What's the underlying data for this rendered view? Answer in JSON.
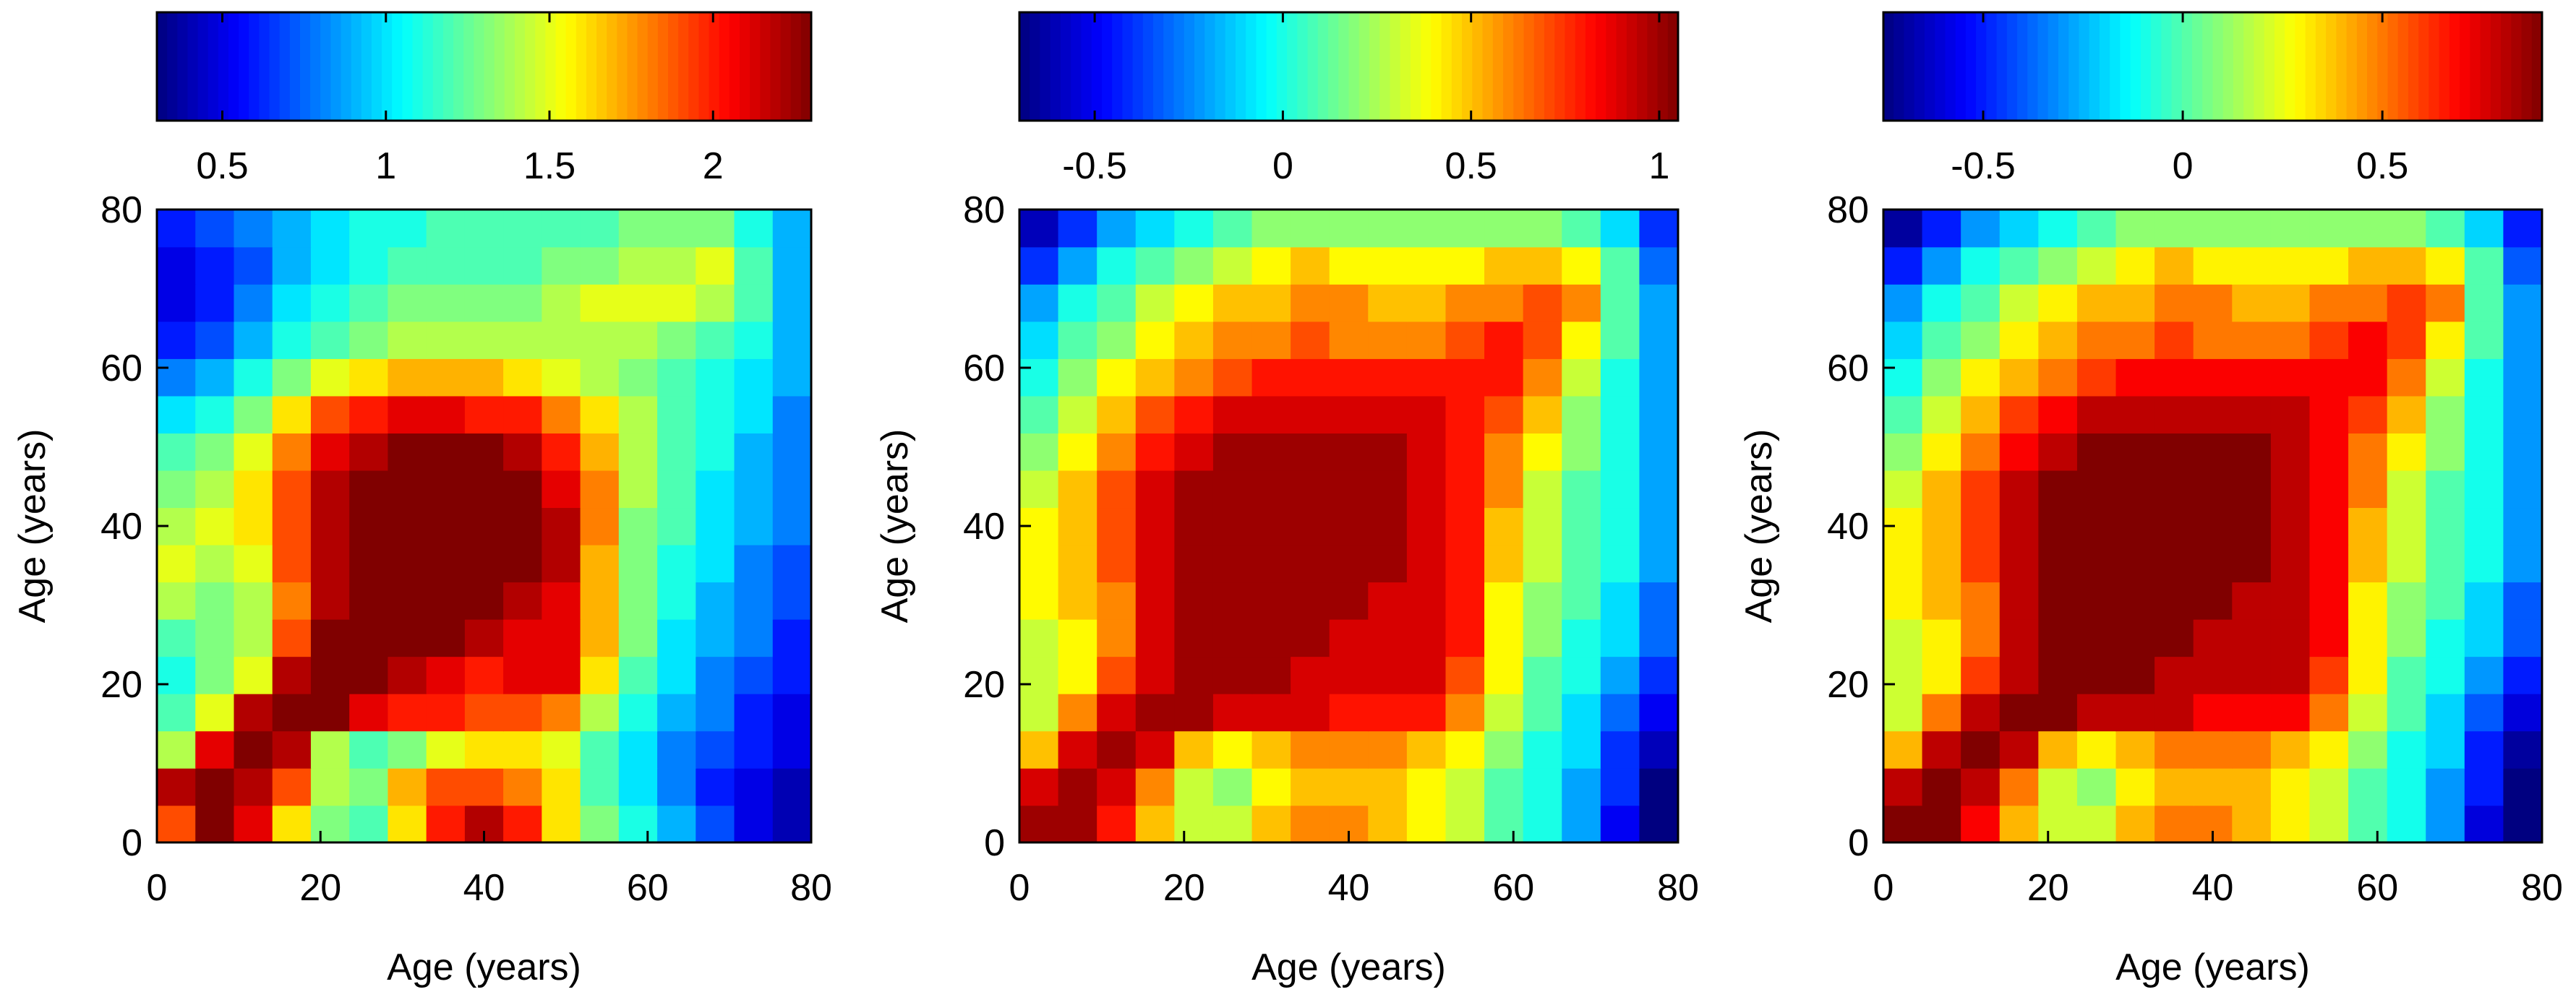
{
  "colormap": "jet",
  "chart_data": [
    {
      "type": "heatmap",
      "xlabel": "Age (years)",
      "ylabel": "Age (years)",
      "xlim": [
        0,
        80
      ],
      "ylim": [
        0,
        80
      ],
      "xticks": [
        "0",
        "20",
        "40",
        "60",
        "80"
      ],
      "yticks": [
        "0",
        "20",
        "40",
        "60",
        "80"
      ],
      "colorbar": {
        "location": "top",
        "range": [
          0.3,
          2.3
        ],
        "tick_values": [
          0.5,
          1,
          1.5,
          2
        ],
        "tick_labels": [
          "0.5",
          "1",
          "1.5",
          "2"
        ]
      },
      "grid_step": 5,
      "values": [
        [
          1.9,
          2.3,
          2.1,
          1.6,
          1.3,
          1.2,
          1.6,
          2.0,
          2.2,
          2.0,
          1.6,
          1.3,
          1.1,
          0.9,
          0.7,
          0.5,
          0.4
        ],
        [
          2.2,
          2.3,
          2.2,
          1.9,
          1.4,
          1.3,
          1.7,
          1.9,
          1.9,
          1.8,
          1.6,
          1.2,
          1.0,
          0.8,
          0.6,
          0.5,
          0.4
        ],
        [
          1.4,
          2.1,
          2.3,
          2.2,
          1.4,
          1.2,
          1.3,
          1.5,
          1.6,
          1.6,
          1.5,
          1.2,
          1.0,
          0.8,
          0.7,
          0.6,
          0.5
        ],
        [
          1.2,
          1.5,
          2.2,
          2.3,
          2.3,
          2.1,
          2.0,
          2.0,
          1.9,
          1.9,
          1.8,
          1.4,
          1.1,
          0.9,
          0.8,
          0.6,
          0.5
        ],
        [
          1.1,
          1.3,
          1.5,
          2.2,
          2.3,
          2.3,
          2.2,
          2.1,
          2.0,
          2.1,
          2.1,
          1.6,
          1.2,
          1.0,
          0.8,
          0.7,
          0.6
        ],
        [
          1.2,
          1.3,
          1.4,
          1.9,
          2.3,
          2.3,
          2.3,
          2.3,
          2.2,
          2.1,
          2.1,
          1.7,
          1.3,
          1.0,
          0.9,
          0.8,
          0.6
        ],
        [
          1.4,
          1.3,
          1.4,
          1.8,
          2.2,
          2.3,
          2.4,
          2.3,
          2.3,
          2.2,
          2.1,
          1.7,
          1.3,
          1.1,
          0.9,
          0.8,
          0.7
        ],
        [
          1.5,
          1.4,
          1.5,
          1.9,
          2.2,
          2.3,
          2.3,
          2.3,
          2.4,
          2.3,
          2.2,
          1.7,
          1.3,
          1.1,
          1.0,
          0.8,
          0.7
        ],
        [
          1.4,
          1.5,
          1.6,
          1.9,
          2.2,
          2.3,
          2.4,
          2.3,
          2.3,
          2.3,
          2.2,
          1.8,
          1.3,
          1.2,
          1.0,
          0.9,
          0.8
        ],
        [
          1.3,
          1.4,
          1.6,
          1.9,
          2.2,
          2.3,
          2.3,
          2.4,
          2.4,
          2.3,
          2.1,
          1.8,
          1.4,
          1.2,
          1.0,
          0.9,
          0.8
        ],
        [
          1.2,
          1.3,
          1.5,
          1.8,
          2.1,
          2.2,
          2.3,
          2.3,
          2.3,
          2.2,
          2.0,
          1.7,
          1.4,
          1.2,
          1.1,
          0.9,
          0.8
        ],
        [
          1.0,
          1.1,
          1.3,
          1.6,
          1.9,
          2.0,
          2.1,
          2.1,
          2.0,
          2.0,
          1.8,
          1.6,
          1.4,
          1.2,
          1.1,
          1.0,
          0.8
        ],
        [
          0.8,
          0.9,
          1.1,
          1.3,
          1.5,
          1.6,
          1.7,
          1.7,
          1.7,
          1.6,
          1.5,
          1.4,
          1.3,
          1.2,
          1.1,
          1.0,
          0.9
        ],
        [
          0.6,
          0.7,
          0.9,
          1.1,
          1.2,
          1.3,
          1.4,
          1.4,
          1.4,
          1.4,
          1.4,
          1.4,
          1.4,
          1.3,
          1.2,
          1.1,
          0.9
        ],
        [
          0.5,
          0.6,
          0.8,
          1.0,
          1.1,
          1.2,
          1.3,
          1.3,
          1.3,
          1.3,
          1.4,
          1.5,
          1.5,
          1.5,
          1.4,
          1.2,
          0.9
        ],
        [
          0.5,
          0.6,
          0.7,
          0.9,
          1.0,
          1.1,
          1.2,
          1.2,
          1.2,
          1.2,
          1.3,
          1.3,
          1.4,
          1.4,
          1.5,
          1.2,
          0.9
        ],
        [
          0.6,
          0.7,
          0.8,
          0.9,
          1.0,
          1.1,
          1.1,
          1.2,
          1.2,
          1.2,
          1.2,
          1.2,
          1.3,
          1.3,
          1.3,
          1.1,
          0.9
        ]
      ]
    },
    {
      "type": "heatmap",
      "xlabel": "Age (years)",
      "ylabel": "Age (years)",
      "xlim": [
        0,
        80
      ],
      "ylim": [
        0,
        80
      ],
      "xticks": [
        "0",
        "20",
        "40",
        "60",
        "80"
      ],
      "yticks": [
        "0",
        "20",
        "40",
        "60",
        "80"
      ],
      "colorbar": {
        "location": "top",
        "range": [
          -0.7,
          1.05
        ],
        "tick_values": [
          -0.5,
          0,
          0.5,
          1
        ],
        "tick_labels": [
          "-0.5",
          "0",
          "0.5",
          "1"
        ]
      },
      "grid_step": 5,
      "values": [
        [
          1.0,
          1.0,
          0.8,
          0.5,
          0.3,
          0.3,
          0.5,
          0.6,
          0.6,
          0.5,
          0.4,
          0.3,
          0.1,
          0.0,
          -0.2,
          -0.5,
          -0.7
        ],
        [
          0.9,
          1.0,
          0.9,
          0.6,
          0.3,
          0.2,
          0.4,
          0.5,
          0.5,
          0.5,
          0.4,
          0.3,
          0.1,
          0.0,
          -0.2,
          -0.4,
          -0.7
        ],
        [
          0.5,
          0.9,
          1.0,
          0.9,
          0.5,
          0.4,
          0.5,
          0.6,
          0.6,
          0.6,
          0.5,
          0.4,
          0.2,
          0.0,
          -0.1,
          -0.4,
          -0.6
        ],
        [
          0.3,
          0.6,
          0.9,
          1.0,
          1.0,
          0.9,
          0.9,
          0.9,
          0.8,
          0.8,
          0.8,
          0.6,
          0.3,
          0.1,
          -0.1,
          -0.3,
          -0.5
        ],
        [
          0.3,
          0.4,
          0.7,
          0.9,
          1.0,
          1.0,
          1.0,
          0.9,
          0.9,
          0.9,
          0.9,
          0.7,
          0.4,
          0.1,
          0.0,
          -0.2,
          -0.4
        ],
        [
          0.3,
          0.4,
          0.6,
          0.9,
          1.0,
          1.0,
          1.0,
          1.0,
          0.9,
          0.9,
          0.9,
          0.8,
          0.4,
          0.2,
          0.0,
          -0.1,
          -0.3
        ],
        [
          0.4,
          0.5,
          0.6,
          0.9,
          1.0,
          1.0,
          1.0,
          1.0,
          1.0,
          0.9,
          0.9,
          0.8,
          0.4,
          0.2,
          0.1,
          -0.1,
          -0.3
        ],
        [
          0.4,
          0.5,
          0.7,
          0.9,
          1.0,
          1.0,
          1.0,
          1.0,
          1.0,
          1.0,
          0.9,
          0.8,
          0.5,
          0.3,
          0.1,
          0.0,
          -0.2
        ],
        [
          0.4,
          0.5,
          0.7,
          0.9,
          1.0,
          1.0,
          1.0,
          1.0,
          1.0,
          1.0,
          0.9,
          0.8,
          0.5,
          0.3,
          0.1,
          0.0,
          -0.2
        ],
        [
          0.3,
          0.5,
          0.7,
          0.9,
          1.0,
          1.0,
          1.0,
          1.0,
          1.0,
          1.0,
          0.9,
          0.8,
          0.6,
          0.3,
          0.1,
          0.0,
          -0.2
        ],
        [
          0.2,
          0.4,
          0.6,
          0.8,
          0.9,
          1.0,
          1.0,
          1.0,
          1.0,
          1.0,
          0.9,
          0.8,
          0.6,
          0.4,
          0.2,
          0.0,
          -0.2
        ],
        [
          0.1,
          0.3,
          0.5,
          0.7,
          0.8,
          0.9,
          0.9,
          0.9,
          0.9,
          0.9,
          0.9,
          0.8,
          0.7,
          0.5,
          0.2,
          0.0,
          -0.2
        ],
        [
          0.0,
          0.2,
          0.4,
          0.5,
          0.6,
          0.7,
          0.8,
          0.8,
          0.8,
          0.8,
          0.8,
          0.8,
          0.8,
          0.6,
          0.3,
          0.0,
          -0.2
        ],
        [
          -0.1,
          0.1,
          0.2,
          0.4,
          0.5,
          0.6,
          0.6,
          0.7,
          0.6,
          0.6,
          0.6,
          0.7,
          0.8,
          0.7,
          0.4,
          0.1,
          -0.2
        ],
        [
          -0.2,
          0.0,
          0.1,
          0.3,
          0.4,
          0.5,
          0.5,
          0.6,
          0.6,
          0.5,
          0.5,
          0.6,
          0.6,
          0.7,
          0.6,
          0.1,
          -0.2
        ],
        [
          -0.4,
          -0.2,
          0.0,
          0.1,
          0.2,
          0.3,
          0.4,
          0.5,
          0.4,
          0.4,
          0.4,
          0.4,
          0.5,
          0.5,
          0.4,
          0.1,
          -0.3
        ],
        [
          -0.6,
          -0.4,
          -0.2,
          -0.1,
          0.0,
          0.1,
          0.2,
          0.2,
          0.2,
          0.2,
          0.2,
          0.2,
          0.2,
          0.2,
          0.1,
          -0.1,
          -0.4
        ]
      ]
    },
    {
      "type": "heatmap",
      "xlabel": "Age (years)",
      "ylabel": "Age (years)",
      "xlim": [
        0,
        80
      ],
      "ylim": [
        0,
        80
      ],
      "xticks": [
        "0",
        "20",
        "40",
        "60",
        "80"
      ],
      "yticks": [
        "0",
        "20",
        "40",
        "60",
        "80"
      ],
      "colorbar": {
        "location": "top",
        "range": [
          -0.75,
          0.9
        ],
        "tick_values": [
          -0.5,
          0,
          0.5
        ],
        "tick_labels": [
          "-0.5",
          "0",
          "0.5"
        ]
      },
      "grid_step": 5,
      "values": [
        [
          0.9,
          0.9,
          0.7,
          0.4,
          0.2,
          0.2,
          0.4,
          0.5,
          0.5,
          0.4,
          0.3,
          0.2,
          0.0,
          -0.1,
          -0.3,
          -0.6,
          -0.75
        ],
        [
          0.8,
          0.9,
          0.8,
          0.5,
          0.2,
          0.1,
          0.3,
          0.4,
          0.4,
          0.4,
          0.3,
          0.2,
          0.0,
          -0.1,
          -0.3,
          -0.5,
          -0.75
        ],
        [
          0.4,
          0.8,
          0.9,
          0.8,
          0.4,
          0.3,
          0.4,
          0.5,
          0.5,
          0.5,
          0.4,
          0.3,
          0.1,
          -0.1,
          -0.2,
          -0.5,
          -0.7
        ],
        [
          0.2,
          0.5,
          0.8,
          0.9,
          0.9,
          0.8,
          0.8,
          0.8,
          0.7,
          0.7,
          0.7,
          0.5,
          0.2,
          0.0,
          -0.2,
          -0.4,
          -0.6
        ],
        [
          0.2,
          0.3,
          0.6,
          0.8,
          0.9,
          0.9,
          0.9,
          0.8,
          0.8,
          0.8,
          0.8,
          0.6,
          0.3,
          0.0,
          -0.1,
          -0.3,
          -0.5
        ],
        [
          0.2,
          0.3,
          0.5,
          0.8,
          0.9,
          0.9,
          0.9,
          0.9,
          0.8,
          0.8,
          0.8,
          0.7,
          0.3,
          0.1,
          -0.1,
          -0.2,
          -0.4
        ],
        [
          0.3,
          0.4,
          0.5,
          0.8,
          0.9,
          0.9,
          0.9,
          0.9,
          0.9,
          0.8,
          0.8,
          0.7,
          0.3,
          0.1,
          0.0,
          -0.2,
          -0.4
        ],
        [
          0.3,
          0.4,
          0.6,
          0.8,
          0.9,
          0.9,
          0.9,
          0.9,
          0.9,
          0.9,
          0.8,
          0.7,
          0.4,
          0.2,
          0.0,
          -0.1,
          -0.3
        ],
        [
          0.3,
          0.4,
          0.6,
          0.8,
          0.9,
          0.9,
          0.9,
          0.9,
          0.9,
          0.9,
          0.8,
          0.7,
          0.4,
          0.2,
          0.0,
          -0.1,
          -0.3
        ],
        [
          0.2,
          0.4,
          0.6,
          0.8,
          0.9,
          0.9,
          0.9,
          0.9,
          0.9,
          0.9,
          0.8,
          0.7,
          0.5,
          0.2,
          0.0,
          -0.1,
          -0.3
        ],
        [
          0.1,
          0.3,
          0.5,
          0.7,
          0.8,
          0.9,
          0.9,
          0.9,
          0.9,
          0.9,
          0.8,
          0.7,
          0.5,
          0.3,
          0.1,
          -0.1,
          -0.3
        ],
        [
          0.0,
          0.2,
          0.4,
          0.6,
          0.7,
          0.8,
          0.8,
          0.8,
          0.8,
          0.8,
          0.8,
          0.7,
          0.6,
          0.4,
          0.1,
          -0.1,
          -0.3
        ],
        [
          -0.1,
          0.1,
          0.3,
          0.4,
          0.5,
          0.6,
          0.7,
          0.7,
          0.7,
          0.7,
          0.7,
          0.7,
          0.7,
          0.5,
          0.2,
          -0.1,
          -0.3
        ],
        [
          -0.2,
          0.0,
          0.1,
          0.3,
          0.4,
          0.5,
          0.5,
          0.6,
          0.5,
          0.5,
          0.5,
          0.6,
          0.7,
          0.6,
          0.3,
          0.0,
          -0.3
        ],
        [
          -0.3,
          -0.1,
          0.0,
          0.2,
          0.3,
          0.4,
          0.4,
          0.5,
          0.5,
          0.4,
          0.4,
          0.5,
          0.5,
          0.6,
          0.5,
          0.0,
          -0.3
        ],
        [
          -0.5,
          -0.3,
          -0.1,
          0.0,
          0.1,
          0.2,
          0.3,
          0.4,
          0.3,
          0.3,
          0.3,
          0.3,
          0.4,
          0.4,
          0.3,
          0.0,
          -0.4
        ],
        [
          -0.7,
          -0.5,
          -0.3,
          -0.2,
          -0.1,
          0.0,
          0.1,
          0.1,
          0.1,
          0.1,
          0.1,
          0.1,
          0.1,
          0.1,
          0.0,
          -0.2,
          -0.5
        ]
      ]
    }
  ]
}
